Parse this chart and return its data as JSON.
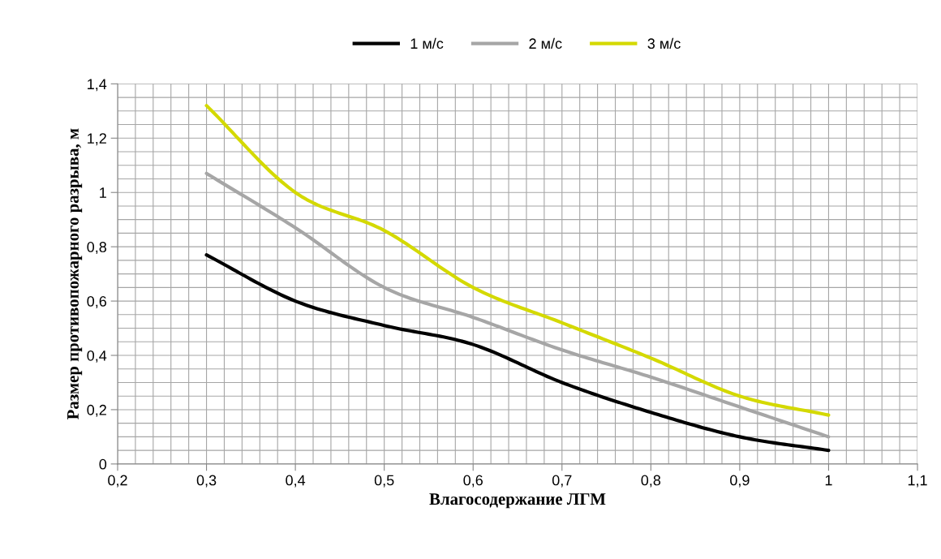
{
  "chart_data": {
    "type": "line",
    "xlabel": "Влагосодержание ЛГМ",
    "ylabel": "Размер противопожарного разрыва, м",
    "x": [
      0.3,
      0.4,
      0.5,
      0.6,
      0.7,
      0.8,
      0.9,
      1.0
    ],
    "series": [
      {
        "name": "1 м/с",
        "color": "#000000",
        "values": [
          0.77,
          0.6,
          0.51,
          0.44,
          0.3,
          0.19,
          0.1,
          0.05
        ]
      },
      {
        "name": "2 м/с",
        "color": "#a6a6a6",
        "values": [
          1.07,
          0.87,
          0.65,
          0.54,
          0.42,
          0.32,
          0.21,
          0.1
        ]
      },
      {
        "name": "3 м/с",
        "color": "#d4d900",
        "values": [
          1.32,
          1.0,
          0.86,
          0.65,
          0.52,
          0.39,
          0.25,
          0.18
        ]
      }
    ],
    "xlim": [
      0.2,
      1.1
    ],
    "ylim": [
      0,
      1.4
    ],
    "xticks": [
      {
        "value": 0.2,
        "label": "0,2"
      },
      {
        "value": 0.3,
        "label": "0,3"
      },
      {
        "value": 0.4,
        "label": "0,4"
      },
      {
        "value": 0.5,
        "label": "0,5"
      },
      {
        "value": 0.6,
        "label": "0,6"
      },
      {
        "value": 0.7,
        "label": "0,7"
      },
      {
        "value": 0.8,
        "label": "0,8"
      },
      {
        "value": 0.9,
        "label": "0,9"
      },
      1,
      {
        "value": 1.1,
        "label": "1,1"
      }
    ],
    "yticks": [
      0,
      {
        "value": 0.2,
        "label": "0,2"
      },
      {
        "value": 0.4,
        "label": "0,4"
      },
      {
        "value": 0.6,
        "label": "0,6"
      },
      {
        "value": 0.8,
        "label": "0,8"
      },
      1,
      {
        "value": 1.2,
        "label": "1,2"
      },
      {
        "value": 1.4,
        "label": "1,4"
      }
    ],
    "grid": true,
    "legend": "top",
    "marker": "none",
    "line_style": "solid"
  }
}
